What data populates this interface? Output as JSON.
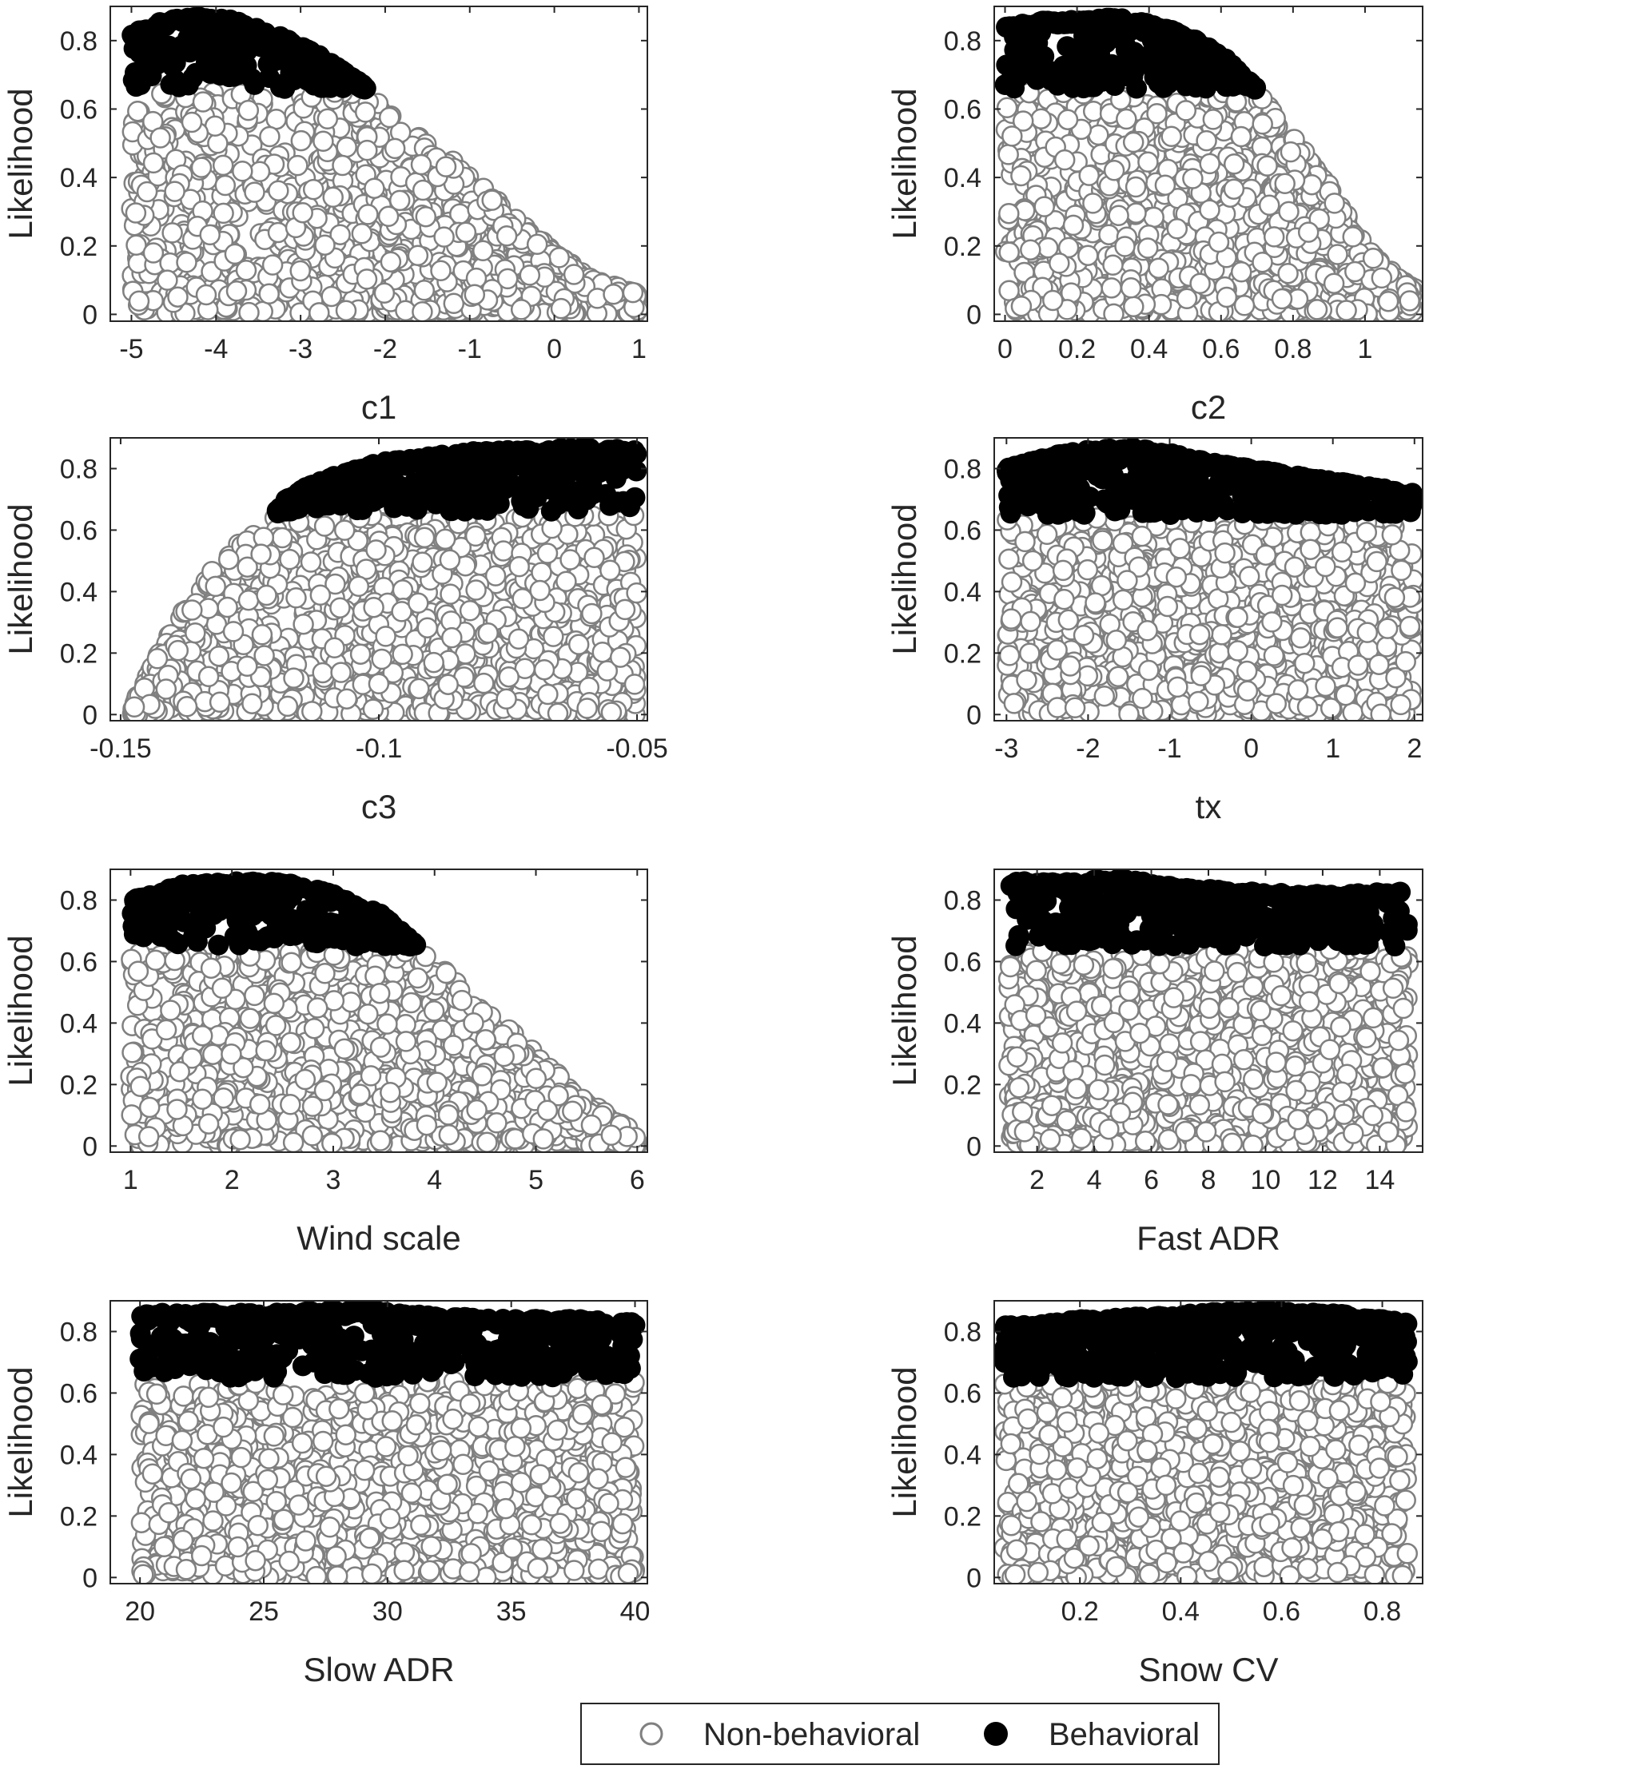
{
  "colors": {
    "non_behavioral_fill": "#ffffff",
    "non_behavioral_edge": "#808080",
    "behavioral_fill": "#000000",
    "axis": "#262626"
  },
  "legend": {
    "placement": "bottom-center",
    "entries": [
      {
        "label": "Non-behavioral",
        "marker": "open-circle"
      },
      {
        "label": "Behavioral",
        "marker": "filled-circle"
      }
    ]
  },
  "chart_data": [
    {
      "type": "scatter",
      "xlabel": "c1",
      "ylabel": "Likelihood",
      "xlim": [
        -5.25,
        1.1
      ],
      "ylim": [
        -0.02,
        0.9
      ],
      "xticks": [
        -5,
        -4,
        -3,
        -2,
        -1,
        0,
        1
      ],
      "xtick_labels": [
        "-5",
        "-4",
        "-3",
        "-2",
        "-1",
        "0",
        "1"
      ],
      "yticks": [
        0,
        0.2,
        0.4,
        0.6,
        0.8
      ],
      "ytick_labels": [
        "0",
        "0.2",
        "0.4",
        "0.6",
        "0.8"
      ],
      "behavioral_threshold": 0.66,
      "upper_envelope": [
        [
          -5,
          0.82
        ],
        [
          -4.6,
          0.86
        ],
        [
          -4.2,
          0.87
        ],
        [
          -3.8,
          0.86
        ],
        [
          -3.3,
          0.82
        ],
        [
          -2.8,
          0.76
        ],
        [
          -2.3,
          0.68
        ],
        [
          -2,
          0.6
        ],
        [
          -1.5,
          0.5
        ],
        [
          -1,
          0.42
        ],
        [
          -0.5,
          0.3
        ],
        [
          0,
          0.18
        ],
        [
          0.5,
          0.1
        ],
        [
          1,
          0.06
        ]
      ]
    },
    {
      "type": "scatter",
      "xlabel": "c2",
      "ylabel": "Likelihood",
      "xlim": [
        -0.03,
        1.16
      ],
      "ylim": [
        -0.02,
        0.9
      ],
      "xticks": [
        0,
        0.2,
        0.4,
        0.6,
        0.8,
        1
      ],
      "xtick_labels": [
        "0",
        "0.2",
        "0.4",
        "0.6",
        "0.8",
        "1"
      ],
      "yticks": [
        0,
        0.2,
        0.4,
        0.6,
        0.8
      ],
      "ytick_labels": [
        "0",
        "0.2",
        "0.4",
        "0.6",
        "0.8"
      ],
      "behavioral_threshold": 0.66,
      "upper_envelope": [
        [
          0,
          0.84
        ],
        [
          0.1,
          0.86
        ],
        [
          0.2,
          0.86
        ],
        [
          0.3,
          0.87
        ],
        [
          0.4,
          0.85
        ],
        [
          0.5,
          0.82
        ],
        [
          0.6,
          0.76
        ],
        [
          0.7,
          0.66
        ],
        [
          0.8,
          0.52
        ],
        [
          0.9,
          0.38
        ],
        [
          1,
          0.2
        ],
        [
          1.1,
          0.1
        ],
        [
          1.14,
          0.08
        ]
      ]
    },
    {
      "type": "scatter",
      "xlabel": "c3",
      "ylabel": "Likelihood",
      "xlim": [
        -0.152,
        -0.048
      ],
      "ylim": [
        -0.02,
        0.9
      ],
      "xticks": [
        -0.15,
        -0.1,
        -0.05
      ],
      "xtick_labels": [
        "-0.15",
        "-0.1",
        "-0.05"
      ],
      "yticks": [
        0,
        0.2,
        0.4,
        0.6,
        0.8
      ],
      "ytick_labels": [
        "0",
        "0.2",
        "0.4",
        "0.6",
        "0.8"
      ],
      "behavioral_threshold": 0.66,
      "upper_envelope": [
        [
          -0.148,
          0.02
        ],
        [
          -0.142,
          0.22
        ],
        [
          -0.135,
          0.42
        ],
        [
          -0.128,
          0.55
        ],
        [
          -0.122,
          0.62
        ],
        [
          -0.118,
          0.7
        ],
        [
          -0.112,
          0.76
        ],
        [
          -0.1,
          0.82
        ],
        [
          -0.09,
          0.84
        ],
        [
          -0.08,
          0.86
        ],
        [
          -0.07,
          0.86
        ],
        [
          -0.06,
          0.87
        ],
        [
          -0.05,
          0.86
        ]
      ]
    },
    {
      "type": "scatter",
      "xlabel": "tx",
      "ylabel": "Likelihood",
      "xlim": [
        -3.15,
        2.1
      ],
      "ylim": [
        -0.02,
        0.9
      ],
      "xticks": [
        -3,
        -2,
        -1,
        0,
        1,
        2
      ],
      "xtick_labels": [
        "-3",
        "-2",
        "-1",
        "0",
        "1",
        "2"
      ],
      "yticks": [
        0,
        0.2,
        0.4,
        0.6,
        0.8
      ],
      "ytick_labels": [
        "0",
        "0.2",
        "0.4",
        "0.6",
        "0.8"
      ],
      "behavioral_threshold": 0.65,
      "upper_envelope": [
        [
          -3,
          0.8
        ],
        [
          -2.5,
          0.84
        ],
        [
          -2,
          0.86
        ],
        [
          -1.5,
          0.87
        ],
        [
          -1,
          0.85
        ],
        [
          -0.5,
          0.82
        ],
        [
          0,
          0.8
        ],
        [
          0.5,
          0.78
        ],
        [
          1,
          0.76
        ],
        [
          1.5,
          0.74
        ],
        [
          2,
          0.72
        ]
      ]
    },
    {
      "type": "scatter",
      "xlabel": "Wind scale",
      "ylabel": "Likelihood",
      "xlim": [
        0.8,
        6.1
      ],
      "ylim": [
        -0.02,
        0.9
      ],
      "xticks": [
        1,
        2,
        3,
        4,
        5,
        6
      ],
      "xtick_labels": [
        "1",
        "2",
        "3",
        "4",
        "5",
        "6"
      ],
      "yticks": [
        0,
        0.2,
        0.4,
        0.6,
        0.8
      ],
      "ytick_labels": [
        "0",
        "0.2",
        "0.4",
        "0.6",
        "0.8"
      ],
      "behavioral_threshold": 0.65,
      "upper_envelope": [
        [
          1,
          0.8
        ],
        [
          1.5,
          0.85
        ],
        [
          2,
          0.86
        ],
        [
          2.5,
          0.86
        ],
        [
          3,
          0.82
        ],
        [
          3.5,
          0.75
        ],
        [
          3.8,
          0.66
        ],
        [
          4,
          0.6
        ],
        [
          4.5,
          0.45
        ],
        [
          5,
          0.3
        ],
        [
          5.5,
          0.15
        ],
        [
          6,
          0.04
        ]
      ]
    },
    {
      "type": "scatter",
      "xlabel": "Fast ADR",
      "ylabel": "Likelihood",
      "xlim": [
        0.5,
        15.5
      ],
      "ylim": [
        -0.02,
        0.9
      ],
      "xticks": [
        2,
        4,
        6,
        8,
        10,
        12,
        14
      ],
      "xtick_labels": [
        "2",
        "4",
        "6",
        "8",
        "10",
        "12",
        "14"
      ],
      "yticks": [
        0,
        0.2,
        0.4,
        0.6,
        0.8
      ],
      "ytick_labels": [
        "0",
        "0.2",
        "0.4",
        "0.6",
        "0.8"
      ],
      "behavioral_threshold": 0.65,
      "upper_envelope": [
        [
          1,
          0.86
        ],
        [
          3,
          0.86
        ],
        [
          5,
          0.87
        ],
        [
          7,
          0.84
        ],
        [
          9,
          0.83
        ],
        [
          11,
          0.82
        ],
        [
          13,
          0.82
        ],
        [
          15,
          0.83
        ]
      ]
    },
    {
      "type": "scatter",
      "xlabel": "Slow ADR",
      "ylabel": "Likelihood",
      "xlim": [
        18.8,
        40.5
      ],
      "ylim": [
        -0.02,
        0.9
      ],
      "xticks": [
        20,
        25,
        30,
        35,
        40
      ],
      "xtick_labels": [
        "20",
        "25",
        "30",
        "35",
        "40"
      ],
      "yticks": [
        0,
        0.2,
        0.4,
        0.6,
        0.8
      ],
      "ytick_labels": [
        "0",
        "0.2",
        "0.4",
        "0.6",
        "0.8"
      ],
      "behavioral_threshold": 0.65,
      "upper_envelope": [
        [
          20,
          0.86
        ],
        [
          25,
          0.86
        ],
        [
          29,
          0.87
        ],
        [
          32,
          0.85
        ],
        [
          35,
          0.84
        ],
        [
          38,
          0.84
        ],
        [
          40,
          0.83
        ]
      ]
    },
    {
      "type": "scatter",
      "xlabel": "Snow CV",
      "ylabel": "Likelihood",
      "xlim": [
        0.03,
        0.88
      ],
      "ylim": [
        -0.02,
        0.9
      ],
      "xticks": [
        0.2,
        0.4,
        0.6,
        0.8
      ],
      "xtick_labels": [
        "0.2",
        "0.4",
        "0.6",
        "0.8"
      ],
      "yticks": [
        0,
        0.2,
        0.4,
        0.6,
        0.8
      ],
      "ytick_labels": [
        "0",
        "0.2",
        "0.4",
        "0.6",
        "0.8"
      ],
      "behavioral_threshold": 0.65,
      "upper_envelope": [
        [
          0.05,
          0.82
        ],
        [
          0.2,
          0.84
        ],
        [
          0.35,
          0.85
        ],
        [
          0.53,
          0.87
        ],
        [
          0.7,
          0.86
        ],
        [
          0.85,
          0.83
        ]
      ]
    }
  ]
}
